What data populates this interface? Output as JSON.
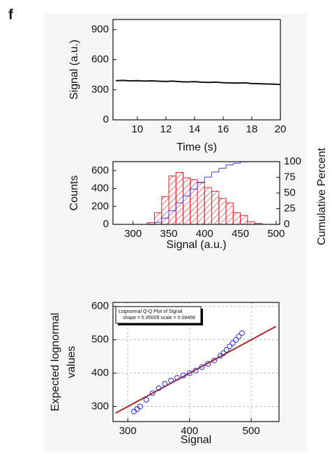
{
  "panel_label": "f",
  "chart_data": [
    {
      "type": "line",
      "xlabel": "Time (s)",
      "ylabel": "Signal (a.u.)",
      "color": "#111111",
      "x": [
        8.5,
        9,
        9.5,
        10,
        10.5,
        11,
        11.5,
        12,
        12.5,
        13,
        13.5,
        14,
        14.5,
        15,
        15.5,
        16,
        16.5,
        17,
        17.5,
        18,
        18.5,
        19,
        19.5,
        20
      ],
      "values": [
        390,
        393,
        388,
        391,
        386,
        389,
        385,
        383,
        386,
        380,
        378,
        381,
        375,
        373,
        376,
        370,
        368,
        366,
        369,
        362,
        360,
        358,
        356,
        352
      ],
      "xlim": [
        8.3,
        20
      ],
      "ylim": [
        0,
        1000
      ],
      "xticks": [
        10,
        12,
        14,
        16,
        18,
        20
      ],
      "yticks": [
        0,
        300,
        600,
        900
      ]
    },
    {
      "type": "histogram",
      "xlabel": "Signal (a.u.)",
      "ylabel": "Counts",
      "y2label": "Cumulative Percent",
      "color": "#e8202a",
      "bins": [
        320,
        330,
        340,
        350,
        360,
        370,
        380,
        390,
        400,
        410,
        420,
        430,
        440,
        450,
        460,
        470,
        480
      ],
      "values": [
        20,
        130,
        310,
        540,
        580,
        520,
        500,
        470,
        410,
        370,
        290,
        240,
        130,
        100,
        30,
        10
      ],
      "cumulative": {
        "axis": "y2",
        "color": "#3a3adf",
        "values": [
          0.4,
          3.2,
          9.9,
          21.6,
          34.2,
          45.5,
          56.3,
          66.5,
          75.4,
          83.4,
          89.6,
          94.8,
          97.6,
          99.8,
          100,
          100
        ]
      },
      "xlim": [
        272,
        505
      ],
      "ylim": [
        0,
        700
      ],
      "y2lim": [
        0,
        100
      ],
      "xticks": [
        300,
        350,
        400,
        450,
        500
      ],
      "yticks": [
        0,
        200,
        400,
        600
      ],
      "y2ticks": [
        0,
        25,
        50,
        75,
        100
      ]
    },
    {
      "type": "scatter",
      "xlabel": "Signal",
      "ylabel": [
        "Expected lognormal",
        "values"
      ],
      "color": "#2b2bd6",
      "grid": true,
      "legend": [
        "Lognormal Q-Q Plot of Signal",
        "shape = 5.95009 scale = 0.08468"
      ],
      "x": [
        310,
        315,
        320,
        330,
        340,
        350,
        360,
        370,
        380,
        390,
        400,
        410,
        420,
        430,
        440,
        450,
        455,
        460,
        465,
        470,
        475,
        480,
        485
      ],
      "values": [
        285,
        292,
        300,
        320,
        340,
        355,
        368,
        378,
        386,
        393,
        400,
        408,
        418,
        428,
        438,
        452,
        460,
        470,
        480,
        490,
        500,
        510,
        520
      ],
      "fit": {
        "color": "#a52a2a",
        "x": [
          280,
          540
        ],
        "values": [
          280,
          540
        ]
      },
      "xlim": [
        276,
        545
      ],
      "ylim": [
        255,
        612
      ],
      "xticks": [
        300,
        400,
        500
      ],
      "yticks": [
        300,
        400,
        500,
        600
      ]
    }
  ]
}
